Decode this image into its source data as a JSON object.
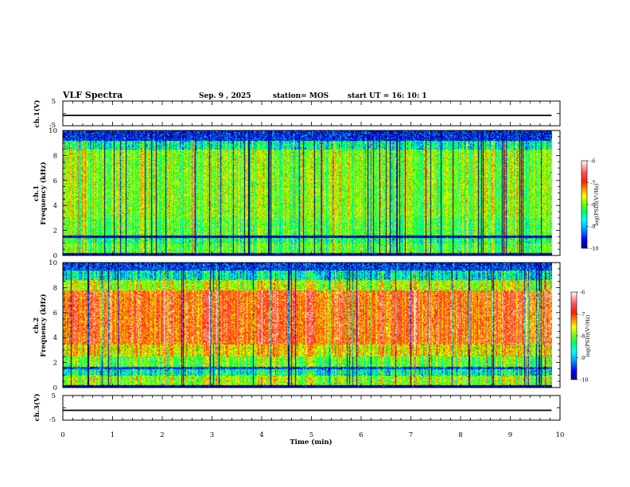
{
  "header": {
    "title": "VLF Spectra",
    "date": "Sep. 9 , 2025",
    "station": "station= MOS",
    "start": "start UT =   16: 10: 1"
  },
  "chart_data": {
    "type": "heatmap",
    "xlabel": "Time (min)",
    "xlim": [
      0,
      10
    ],
    "x_ticks": [
      "0",
      "1",
      "2",
      "3",
      "4",
      "5",
      "6",
      "7",
      "8",
      "9",
      "10"
    ],
    "data_end_min": 9.83,
    "panels": [
      {
        "name": "ch1-waveform",
        "ylabel": "ch.1(V)",
        "ylim": [
          -5,
          5
        ],
        "y_ticks": [
          "5",
          "-5"
        ],
        "trace_level_V": -0.8
      },
      {
        "name": "ch1-spectrogram",
        "ylabel_top": "ch.1",
        "ylabel": "Frequency (kHz)",
        "ylim": [
          0,
          10
        ],
        "y_ticks": [
          "0",
          "2",
          "4",
          "6",
          "8",
          "10"
        ],
        "band_levels": [
          {
            "f_kHz": [
              0.0,
              0.25
            ],
            "level": -10
          },
          {
            "f_kHz": [
              0.25,
              1.0
            ],
            "level": -8.3
          },
          {
            "f_kHz": [
              1.0,
              1.45
            ],
            "level": -8.6
          },
          {
            "f_kHz": [
              1.45,
              1.6
            ],
            "level": -10
          },
          {
            "f_kHz": [
              1.6,
              3.0
            ],
            "level": -8.3
          },
          {
            "f_kHz": [
              3.0,
              8.5
            ],
            "level": -8.1
          },
          {
            "f_kHz": [
              8.5,
              9.2
            ],
            "level": -8.8
          },
          {
            "f_kHz": [
              9.2,
              10.0
            ],
            "level": -9.7
          }
        ],
        "colorbar": {
          "label": "log(PSD)(V²/Hz)",
          "ticks": [
            "-6",
            "-7",
            "-8",
            "-9",
            "-10"
          ],
          "range": [
            -10,
            -6
          ]
        }
      },
      {
        "name": "ch2-spectrogram",
        "ylabel_top": "ch.2",
        "ylabel": "Frequency (kHz)",
        "ylim": [
          0,
          10
        ],
        "y_ticks": [
          "0",
          "2",
          "4",
          "6",
          "8",
          "10"
        ],
        "band_levels": [
          {
            "f_kHz": [
              0.0,
              0.25
            ],
            "level": -10
          },
          {
            "f_kHz": [
              0.25,
              1.0
            ],
            "level": -8.0
          },
          {
            "f_kHz": [
              1.0,
              1.5
            ],
            "level": -8.8
          },
          {
            "f_kHz": [
              1.5,
              1.7
            ],
            "level": -9.6
          },
          {
            "f_kHz": [
              1.7,
              2.5
            ],
            "level": -8.2
          },
          {
            "f_kHz": [
              2.5,
              3.5
            ],
            "level": -7.6
          },
          {
            "f_kHz": [
              3.5,
              7.8
            ],
            "level": -7.0
          },
          {
            "f_kHz": [
              7.8,
              8.6
            ],
            "level": -7.9
          },
          {
            "f_kHz": [
              8.6,
              9.4
            ],
            "level": -8.9
          },
          {
            "f_kHz": [
              9.4,
              10.0
            ],
            "level": -9.6
          }
        ],
        "colorbar": {
          "label": "log(PSD)(V²/Hz)",
          "ticks": [
            "-6",
            "-7",
            "-8",
            "-9",
            "-10"
          ],
          "range": [
            -10,
            -6
          ]
        }
      },
      {
        "name": "ch3-waveform",
        "ylabel": "ch.3(V)",
        "ylim": [
          -5,
          5
        ],
        "y_ticks": [
          "5",
          "-5"
        ],
        "trace_level_V": -1.0
      }
    ],
    "colormap": [
      "#000080",
      "#0000ff",
      "#00a0ff",
      "#00ffff",
      "#00ff80",
      "#00ff00",
      "#c0ff00",
      "#ffff00",
      "#ffa000",
      "#ff3000",
      "#ff2020",
      "#ff9090",
      "#ffffff"
    ]
  }
}
